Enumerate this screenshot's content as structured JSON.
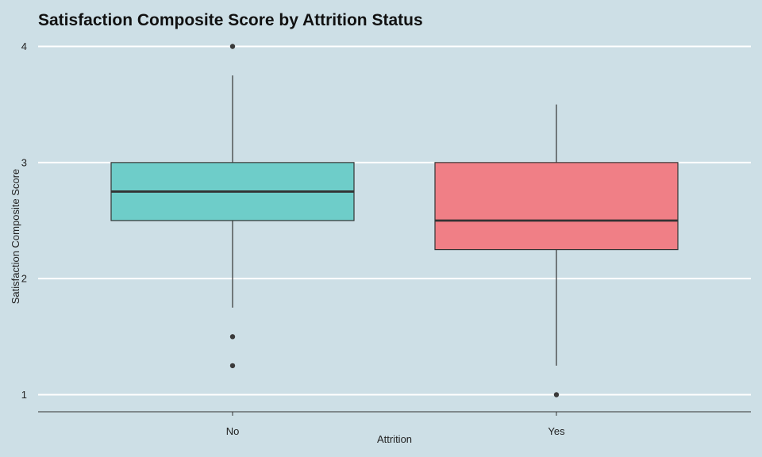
{
  "chart_data": {
    "type": "boxplot",
    "title": "Satisfaction Composite Score by Attrition Status",
    "xlabel": "Attrition",
    "ylabel": "Satisfaction Composite Score",
    "categories": [
      "No",
      "Yes"
    ],
    "ylim": [
      0.85,
      4.0
    ],
    "yticks": [
      1,
      2,
      3,
      4
    ],
    "grid": "horizontal-major",
    "legend": "none",
    "boxes": [
      {
        "category": "No",
        "whisker_low": 1.75,
        "q1": 2.5,
        "median": 2.75,
        "q3": 3.0,
        "whisker_high": 3.75,
        "outliers": [
          4.0,
          1.5,
          1.25
        ],
        "color": "#6ecdc9"
      },
      {
        "category": "Yes",
        "whisker_low": 1.25,
        "q1": 2.25,
        "median": 2.5,
        "q3": 3.0,
        "whisker_high": 3.5,
        "outliers": [
          1.0
        ],
        "color": "#f07f86"
      }
    ]
  },
  "colors": {
    "background": "#cddfe6",
    "grid": "#ffffff",
    "box_stroke": "#333333",
    "outlier": "#3a3a3a"
  }
}
